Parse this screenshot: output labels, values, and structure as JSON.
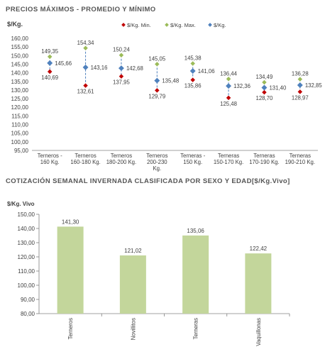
{
  "chart_data": [
    {
      "type": "scatter",
      "title": "PRECIOS MÁXIMOS - PROMEDIO Y MÍNIMO",
      "ylabel": "$/Kg.",
      "ylim": [
        95,
        160
      ],
      "yticks": [
        "95,00",
        "100,00",
        "105,00",
        "110,00",
        "115,00",
        "120,00",
        "125,00",
        "130,00",
        "135,00",
        "140,00",
        "145,00",
        "150,00",
        "155,00",
        "160,00"
      ],
      "categories": [
        [
          "Terneros -",
          "160 Kg."
        ],
        [
          "Terneros",
          "160-180 Kg."
        ],
        [
          "Terneros",
          "180-200 Kg."
        ],
        [
          "Terneros",
          "200-230",
          "Kg."
        ],
        [
          "Terneras -",
          "150 Kg."
        ],
        [
          "Terneras",
          "150-170 Kg."
        ],
        [
          "Terneras",
          "170-190 Kg."
        ],
        [
          "Terneras",
          "190-210 Kg."
        ]
      ],
      "series": [
        {
          "name": "$/Kg. Min.",
          "color": "#c00000",
          "values": [
            140.69,
            132.61,
            137.95,
            129.79,
            135.86,
            125.48,
            128.7,
            128.97
          ],
          "labels": [
            "140,69",
            "132,61",
            "137,95",
            "129,79",
            "135,86",
            "125,48",
            "128,70",
            "128,97"
          ]
        },
        {
          "name": "$/Kg. Max.",
          "color": "#9bbb59",
          "values": [
            149.35,
            154.34,
            150.24,
            145.05,
            145.38,
            136.44,
            134.49,
            136.28
          ],
          "labels": [
            "149,35",
            "154,34",
            "150,24",
            "145,05",
            "145,38",
            "136,44",
            "134,49",
            "136,28"
          ]
        },
        {
          "name": "$/Kg.",
          "color": "#4f81bd",
          "values": [
            145.66,
            143.16,
            142.68,
            135.48,
            141.06,
            132.36,
            131.4,
            132.85
          ],
          "labels": [
            "145,66",
            "143,16",
            "142,68",
            "135,48",
            "141,06",
            "132,36",
            "131,40",
            "132,85"
          ]
        }
      ]
    },
    {
      "type": "bar",
      "title": "COTIZACIÓN SEMANAL INVERNADA CLASIFICADA POR SEXO Y EDAD[$/Kg.Vivo]",
      "ylabel": "$/Kg. Vivo",
      "ylim": [
        80,
        150
      ],
      "yticks": [
        "80,00",
        "90,00",
        "100,00",
        "110,00",
        "120,00",
        "130,00",
        "140,00",
        "150,00"
      ],
      "categories": [
        "Terneros",
        "Novillitos",
        "Terneras",
        "Vaquillonas"
      ],
      "values": [
        141.3,
        121.02,
        135.06,
        122.42
      ],
      "labels": [
        "141,30",
        "121,02",
        "135,06",
        "122,42"
      ],
      "color": "#c3d69b"
    }
  ]
}
